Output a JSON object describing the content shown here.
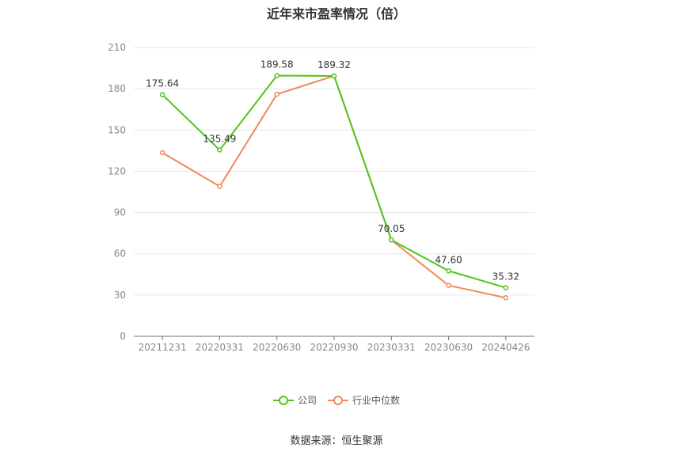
{
  "chart_data": {
    "type": "line",
    "title": "近年来市盈率情况（倍）",
    "categories": [
      "20211231",
      "20220331",
      "20220630",
      "20220930",
      "20230331",
      "20230630",
      "20240426"
    ],
    "ylim": [
      0,
      210
    ],
    "yticks": [
      "0",
      "30",
      "60",
      "90",
      "120",
      "150",
      "180",
      "210"
    ],
    "grid": true,
    "legend_position": "bottom-center",
    "series": [
      {
        "name": "公司",
        "color": "#52c41a",
        "values": [
          175.64,
          135.49,
          189.58,
          189.32,
          70.05,
          47.6,
          35.32
        ],
        "labels": [
          "175.64",
          "135.49",
          "189.58",
          "189.32",
          "70.05",
          "47.60",
          "35.32"
        ]
      },
      {
        "name": "行业中位数",
        "color": "#f0895a",
        "values": [
          133.5,
          109.0,
          176.0,
          189.3,
          70.0,
          37.0,
          28.0
        ]
      }
    ]
  },
  "source": "数据来源：恒生聚源"
}
